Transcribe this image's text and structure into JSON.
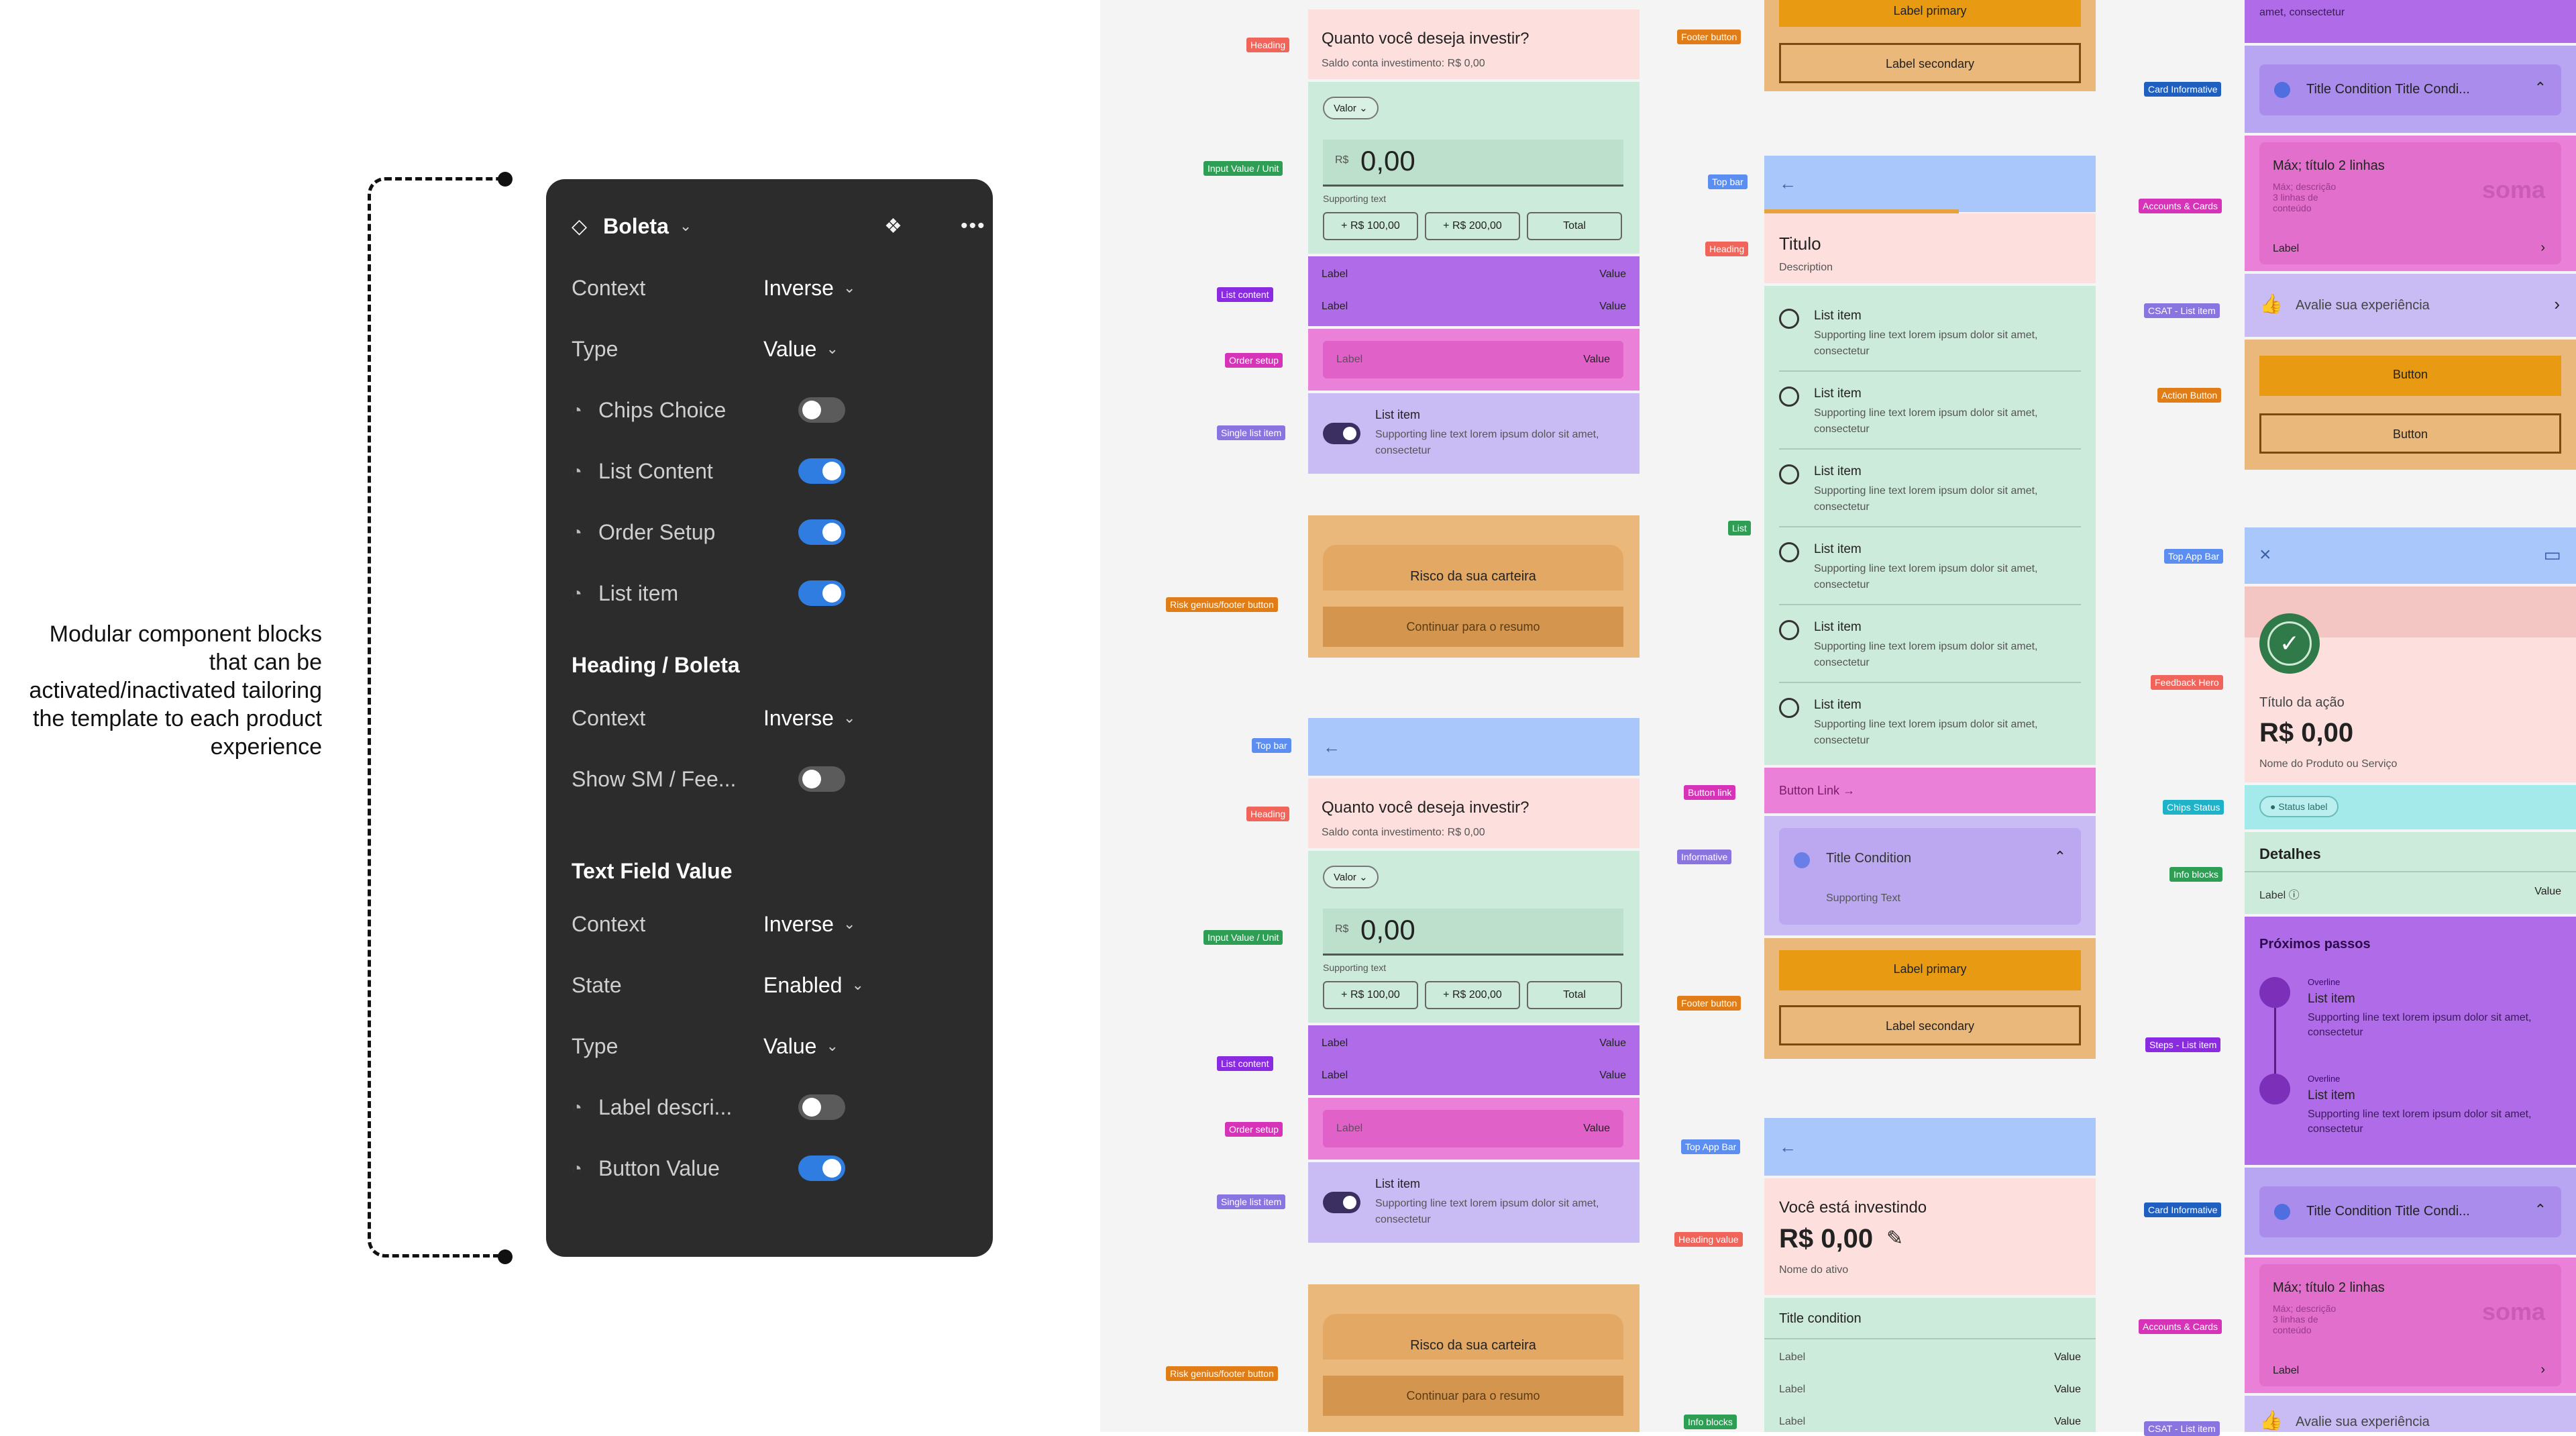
{
  "caption": "Modular component blocks that can be activated/inactivated tailoring the template to each product experience",
  "panel": {
    "title": "Boleta",
    "rows": [
      {
        "label": "Context",
        "value": "Inverse"
      },
      {
        "label": "Type",
        "value": "Value"
      },
      {
        "label": "Chips Choice",
        "toggle": false
      },
      {
        "label": "List Content",
        "toggle": true
      },
      {
        "label": "Order Setup",
        "toggle": true
      },
      {
        "label": "List item",
        "toggle": true
      }
    ],
    "section2": {
      "title": "Heading / Boleta",
      "rows": [
        {
          "label": "Context",
          "value": "Inverse"
        },
        {
          "label": "Show SM / Fee...",
          "toggle": false
        }
      ]
    },
    "section3": {
      "title": "Text Field Value",
      "rows": [
        {
          "label": "Context",
          "value": "Inverse"
        },
        {
          "label": "State",
          "value": "Enabled"
        },
        {
          "label": "Type",
          "value": "Value"
        },
        {
          "label": "Label descri...",
          "toggle": false
        },
        {
          "label": "Button Value",
          "toggle": true
        }
      ]
    }
  },
  "col1": {
    "tags": {
      "heading": "Heading",
      "input": "Input Value / Unit",
      "list": "List content",
      "order": "Order setup",
      "single": "Single list item",
      "risk": "Risk genius/footer button",
      "topbar": "Top bar"
    },
    "heading_title": "Quanto você deseja investir?",
    "heading_sub": "Saldo conta investimento: R$ 0,00",
    "chip": "Valor",
    "currency": "R$",
    "amount": "0,00",
    "supporting": "Supporting text",
    "btn1": "R$ 100,00",
    "btn2": "R$ 200,00",
    "btn3": "Total",
    "label": "Label",
    "value": "Value",
    "list_title": "List item",
    "list_sub": "Supporting line text lorem ipsum dolor sit amet, consectetur",
    "risk": "Risco da sua carteira",
    "continue": "Continuar para o resumo"
  },
  "col2": {
    "tags": {
      "footer": "Footer button",
      "topbar": "Top bar",
      "heading": "Heading",
      "list": "List",
      "buttonlink": "Button link",
      "informative": "Informative",
      "footer2": "Footer button",
      "topappbar": "Top App Bar",
      "headingvalue": "Heading value",
      "infoblocks": "Info blocks"
    },
    "primary": "Label primary",
    "secondary": "Label secondary",
    "title": "Titulo",
    "description": "Description",
    "list_title": "List item",
    "list_sub": "Supporting line text lorem ipsum dolor sit amet, consectetur",
    "button_link": "Button Link",
    "condition": "Title Condition",
    "cond_sub": "Supporting Text",
    "investing": "Você está investindo",
    "inv_amount": "R$ 0,00",
    "asset": "Nome do ativo",
    "title_condition": "Title condition",
    "label": "Label",
    "value": "Value"
  },
  "col3": {
    "tags": {
      "card": "Card Informative",
      "accounts": "Accounts & Cards",
      "csat": "CSAT - List item",
      "action": "Action Button",
      "topappbar": "Top App Bar",
      "feedback": "Feedback Hero",
      "chips": "Chips Status",
      "info": "Info blocks",
      "steps": "Steps - List item",
      "card2": "Card Informative",
      "accounts2": "Accounts & Cards",
      "csat2": "CSAT - List item"
    },
    "top_text": "amet, consectetur",
    "cond": "Title Condition Title Condi...",
    "card_title": "Máx; título 2 linhas",
    "card_desc": "Máx; descrição 3 linhas de conteúdo",
    "brand": "soma",
    "label": "Label",
    "csat": "Avalie sua experiência",
    "button": "Button",
    "action_title": "Título da ação",
    "action_value": "R$ 0,00",
    "product": "Nome do Produto ou Serviço",
    "status": "Status label",
    "details": "Detalhes",
    "value": "Value",
    "next": "Próximos passos",
    "overline": "Overline",
    "list_title": "List item",
    "list_sub": "Supporting line text lorem ipsum dolor sit amet, consectetur"
  }
}
